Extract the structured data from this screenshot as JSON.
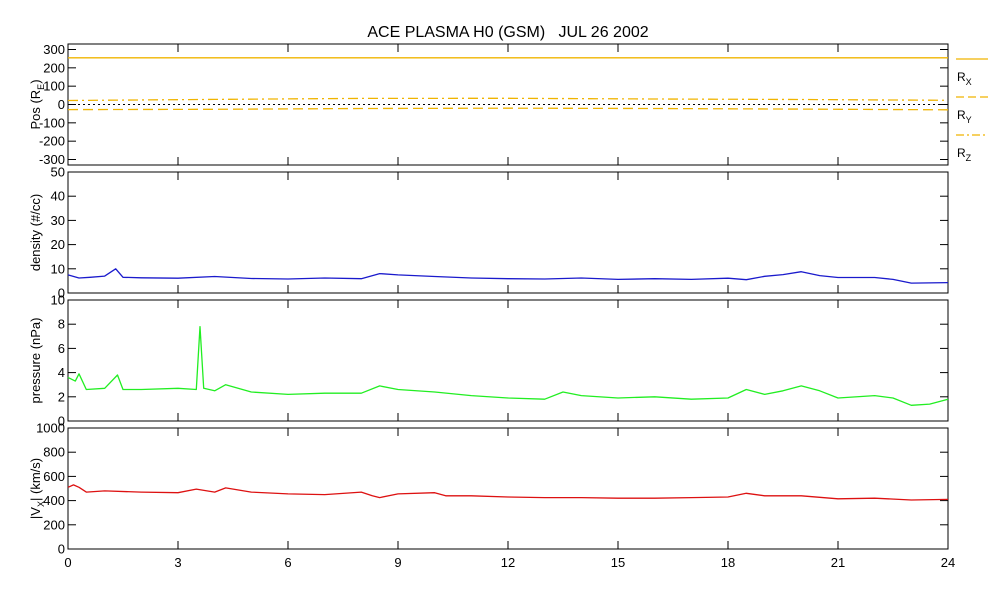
{
  "colors": {
    "position": "#f0b400",
    "density": "#1a1acc",
    "pressure": "#22ee22",
    "velocity": "#dd1111",
    "axis": "#000000",
    "background": "#ffffff"
  },
  "chart_data": {
    "type": "line",
    "title": "ACE PLASMA H0 (GSM)   JUL 26 2002",
    "grid": false,
    "x": {
      "unit": "hours",
      "range": [
        0,
        24
      ],
      "ticks": [
        0,
        3,
        6,
        9,
        12,
        15,
        18,
        21,
        24
      ],
      "tick_labels": [
        "0",
        "3",
        "6",
        "9",
        "12",
        "15",
        "18",
        "21",
        "24"
      ]
    },
    "panels": [
      {
        "key": "pos",
        "ylabel": "Pos (R",
        "ylabel_sub": "E",
        "ylabel_tail": ")",
        "ylim": [
          -330,
          330
        ],
        "yticks": [
          -300,
          -200,
          -100,
          0,
          100,
          200,
          300
        ],
        "ytick_labels": [
          "-300",
          "-200",
          "-100",
          "0",
          "100",
          "200",
          "300"
        ],
        "zero_line": true,
        "legend_position": "right",
        "series": [
          {
            "name": "R",
            "sub": "X",
            "style": "solid",
            "x": [
              0,
              24
            ],
            "y": [
              255,
              255
            ]
          },
          {
            "name": "R",
            "sub": "Y",
            "style": "dashed",
            "x": [
              0,
              4,
              8,
              12,
              16,
              20,
              24
            ],
            "y": [
              -28,
              -26,
              -22,
              -20,
              -22,
              -25,
              -29
            ]
          },
          {
            "name": "R",
            "sub": "Z",
            "style": "dashdot",
            "x": [
              0,
              4,
              8,
              12,
              16,
              20,
              24
            ],
            "y": [
              22,
              28,
              33,
              34,
              30,
              27,
              23
            ]
          }
        ]
      },
      {
        "key": "density",
        "ylabel": "density (#/cc)",
        "ylim": [
          0,
          50
        ],
        "yticks": [
          0,
          10,
          20,
          30,
          40,
          50
        ],
        "ytick_labels": [
          "0",
          "10",
          "20",
          "30",
          "40",
          "50"
        ],
        "series": [
          {
            "name": "density",
            "x": [
              0,
              0.3,
              0.6,
              1.0,
              1.3,
              1.5,
              2,
              3,
              4,
              5,
              6,
              7,
              8,
              8.5,
              9,
              10,
              11,
              12,
              13,
              14,
              15,
              16,
              17,
              18,
              18.5,
              19,
              19.5,
              20,
              20.5,
              21,
              22,
              22.5,
              23,
              24
            ],
            "y": [
              7.5,
              6.2,
              6.5,
              7.0,
              10.0,
              6.5,
              6.3,
              6.1,
              6.8,
              6.0,
              5.8,
              6.2,
              5.9,
              8.0,
              7.5,
              6.8,
              6.2,
              5.9,
              5.8,
              6.2,
              5.6,
              5.9,
              5.6,
              6.1,
              5.5,
              6.9,
              7.6,
              8.8,
              7.2,
              6.4,
              6.4,
              5.6,
              4.1,
              4.3
            ]
          }
        ]
      },
      {
        "key": "pressure",
        "ylabel": "pressure (nPa)",
        "ylim": [
          0,
          10
        ],
        "yticks": [
          0,
          2,
          4,
          6,
          8,
          10
        ],
        "ytick_labels": [
          "0",
          "2",
          "4",
          "6",
          "8",
          "10"
        ],
        "series": [
          {
            "name": "pressure",
            "x": [
              0,
              0.2,
              0.3,
              0.5,
              1.0,
              1.35,
              1.5,
              2,
              3,
              3.5,
              3.6,
              3.7,
              4,
              4.3,
              5,
              6,
              7,
              8,
              8.5,
              9,
              10,
              11,
              12,
              13,
              13.5,
              14,
              15,
              16,
              17,
              18,
              18.5,
              19,
              19.5,
              20,
              20.5,
              21,
              22,
              22.5,
              23,
              23.5,
              24
            ],
            "y": [
              3.6,
              3.3,
              3.9,
              2.6,
              2.7,
              3.8,
              2.6,
              2.6,
              2.7,
              2.6,
              7.8,
              2.7,
              2.5,
              3.0,
              2.4,
              2.2,
              2.3,
              2.3,
              2.9,
              2.6,
              2.4,
              2.1,
              1.9,
              1.8,
              2.4,
              2.1,
              1.9,
              2.0,
              1.8,
              1.9,
              2.6,
              2.2,
              2.5,
              2.9,
              2.5,
              1.9,
              2.1,
              1.9,
              1.3,
              1.4,
              1.8
            ]
          }
        ]
      },
      {
        "key": "vx",
        "ylabel": "|V",
        "ylabel_sub": "X",
        "ylabel_tail": "| (km/s)",
        "ylim": [
          0,
          1000
        ],
        "yticks": [
          0,
          200,
          400,
          600,
          800,
          1000
        ],
        "ytick_labels": [
          "0",
          "200",
          "400",
          "600",
          "800",
          "1000"
        ],
        "series": [
          {
            "name": "|VX|",
            "x": [
              0,
              0.15,
              0.3,
              0.5,
              1.0,
              2,
              3,
              3.5,
              4,
              4.3,
              5,
              6,
              7,
              8,
              8.3,
              8.5,
              9,
              10,
              10.3,
              11,
              12,
              13,
              14,
              15,
              16,
              17,
              18,
              18.5,
              19,
              20,
              21,
              22,
              23,
              24
            ],
            "y": [
              510,
              530,
              510,
              470,
              480,
              470,
              465,
              495,
              470,
              505,
              470,
              455,
              450,
              470,
              440,
              425,
              455,
              465,
              440,
              440,
              430,
              425,
              425,
              420,
              420,
              425,
              430,
              460,
              440,
              440,
              415,
              420,
              405,
              410
            ]
          }
        ]
      }
    ]
  }
}
